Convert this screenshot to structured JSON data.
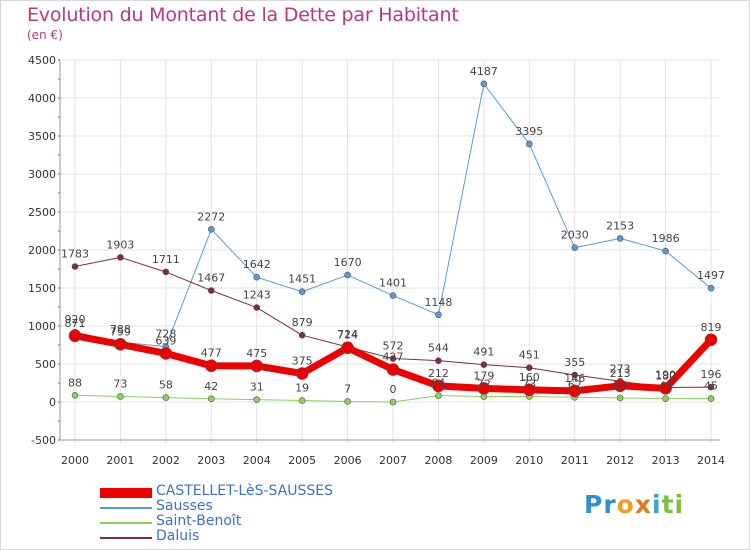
{
  "title": "Evolution du Montant de la Dette par Habitant",
  "subtitle": "(en €)",
  "logo": {
    "text": "Proxiti",
    "letters": [
      {
        "ch": "P",
        "color": "#2f8fd0"
      },
      {
        "ch": "r",
        "color": "#2f8fd0"
      },
      {
        "ch": "o",
        "color": "#f0a020"
      },
      {
        "ch": "x",
        "color": "#e07a20"
      },
      {
        "ch": "i",
        "color": "#3aa0d8"
      },
      {
        "ch": "t",
        "color": "#7cc042"
      },
      {
        "ch": "i",
        "color": "#7cc042"
      }
    ]
  },
  "chart_data": {
    "type": "line",
    "x": [
      "2000",
      "2001",
      "2002",
      "2003",
      "2004",
      "2005",
      "2006",
      "2007",
      "2008",
      "2009",
      "2010",
      "2011",
      "2012",
      "2013",
      "2014"
    ],
    "ylim": [
      -500,
      4500
    ],
    "yticks": [
      "-500",
      "0",
      "500",
      "1000",
      "1500",
      "2000",
      "2500",
      "3000",
      "3500",
      "4000",
      "4500"
    ],
    "grid": true,
    "legend": "bottom-left",
    "series": [
      {
        "name": "Sausses",
        "color": "#5b9bd5",
        "width": 1,
        "values": [
          920,
          788,
          728,
          2272,
          1642,
          1451,
          1670,
          1401,
          1148,
          4187,
          3395,
          2030,
          2153,
          1986,
          1497
        ],
        "labels": [
          "920",
          "788",
          "728",
          "2272",
          "1642",
          "1451",
          "1670",
          "1401",
          "1148",
          "4187",
          "3395",
          "2030",
          "2153",
          "1986",
          "1497"
        ]
      },
      {
        "name": "Daluis",
        "color": "#7b3034",
        "width": 1,
        "values": [
          1783,
          1903,
          1711,
          1467,
          1243,
          879,
          724,
          572,
          544,
          491,
          451,
          355,
          273,
          190,
          196
        ],
        "labels": [
          "1783",
          "1903",
          "1711",
          "1467",
          "1243",
          "879",
          "724",
          "572",
          "544",
          "491",
          "451",
          "355",
          "273",
          "190",
          "196"
        ]
      },
      {
        "name": "Saint-Benoît",
        "color": "#8ad15a",
        "width": 1,
        "values": [
          88,
          73,
          58,
          42,
          31,
          19,
          7,
          0,
          84,
          72,
          73,
          62,
          53,
          45,
          45
        ],
        "labels": [
          "88",
          "73",
          "58",
          "42",
          "31",
          "19",
          "7",
          "0",
          "84",
          "72",
          "73",
          "62",
          "53",
          "45",
          "45"
        ]
      },
      {
        "name": "CASTELLET-LèS-SAUSSES",
        "color": "#ee0000",
        "width": 7,
        "values": [
          871,
          759,
          639,
          477,
          475,
          375,
          714,
          427,
          212,
          179,
          160,
          146,
          213,
          180,
          819
        ],
        "labels": [
          "871",
          "759",
          "639",
          "477",
          "475",
          "375",
          "714",
          "427",
          "212",
          "179",
          "160",
          "146",
          "213",
          "180",
          "819"
        ]
      }
    ],
    "legend_order": [
      "CASTELLET-LèS-SAUSSES",
      "Sausses",
      "Saint-Benoît",
      "Daluis"
    ]
  }
}
